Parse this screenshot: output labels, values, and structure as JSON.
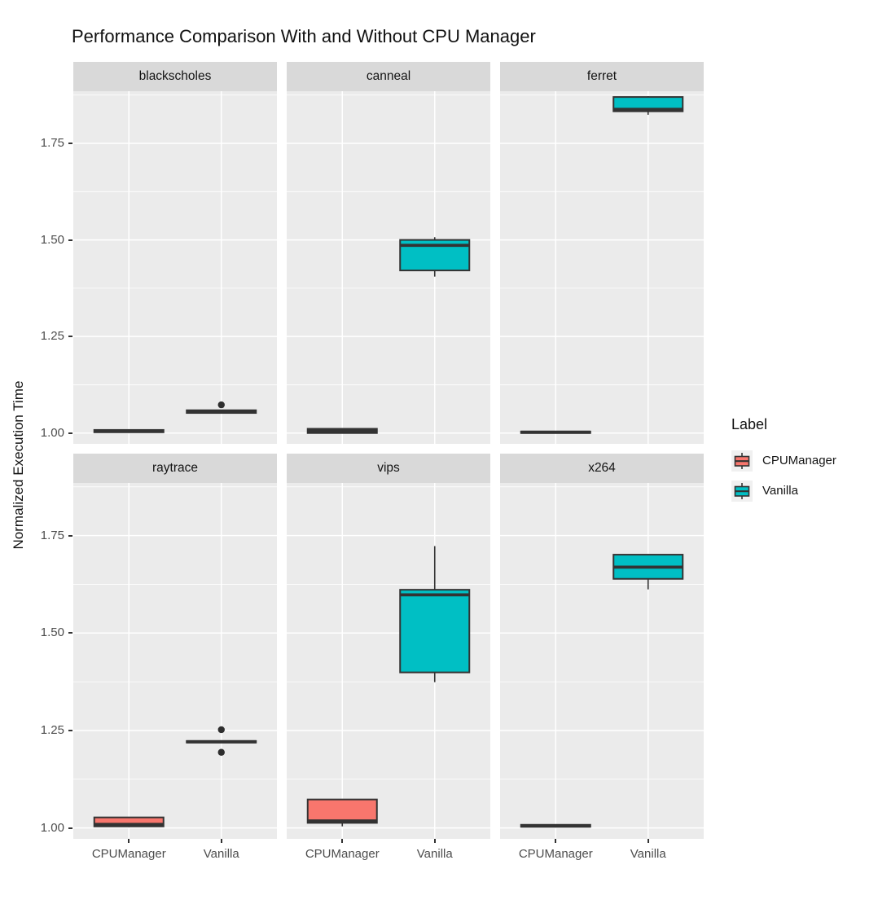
{
  "title": "Performance Comparison With and Without CPU Manager",
  "colors": {
    "panel_bg": "#EBEBEB",
    "strip_bg": "#D9D9D9",
    "grid": "#FFFFFF",
    "box_stroke": "#333333",
    "median": "#333333",
    "outlier": "#2E2E2E",
    "tick_label": "#4D4D4D",
    "legend_key_bg": "#F0F0F0",
    "cpu_manager": "#F8766D",
    "vanilla": "#00BFC4"
  },
  "chart_data": {
    "type": "boxplot",
    "title": "Performance Comparison With and Without CPU Manager",
    "xlabel": "",
    "ylabel": "Normalized Execution Time",
    "categories": [
      "CPUManager",
      "Vanilla"
    ],
    "x_tick_labels": [
      "CPUManager",
      "Vanilla"
    ],
    "y_ticks": [
      1.0,
      1.25,
      1.5,
      1.75
    ],
    "y_tick_labels": [
      "1.00",
      "1.25",
      "1.50",
      "1.75"
    ],
    "y_minor_ticks": [
      1.125,
      1.375,
      1.625,
      1.875
    ],
    "y_domain": [
      0.972,
      1.885
    ],
    "grid": "on",
    "legend": {
      "position": "right",
      "title": "Label",
      "entries": [
        {
          "label": "CPUManager",
          "color": "#F8766D"
        },
        {
          "label": "Vanilla",
          "color": "#00BFC4"
        }
      ]
    },
    "series_colors": {
      "CPUManager": "#F8766D",
      "Vanilla": "#00BFC4"
    },
    "facets": [
      {
        "name": "blackscholes",
        "boxes": [
          {
            "group": "CPUManager",
            "low": 1.002,
            "q1": 1.002,
            "median": 1.005,
            "q3": 1.008,
            "high": 1.008,
            "outliers": []
          },
          {
            "group": "Vanilla",
            "low": 1.052,
            "q1": 1.052,
            "median": 1.056,
            "q3": 1.059,
            "high": 1.059,
            "outliers": [
              1.073
            ]
          }
        ]
      },
      {
        "name": "canneal",
        "boxes": [
          {
            "group": "CPUManager",
            "low": 0.999,
            "q1": 1.0,
            "median": 1.005,
            "q3": 1.011,
            "high": 1.012,
            "outliers": []
          },
          {
            "group": "Vanilla",
            "low": 1.405,
            "q1": 1.421,
            "median": 1.486,
            "q3": 1.5,
            "high": 1.507,
            "outliers": []
          }
        ]
      },
      {
        "name": "ferret",
        "boxes": [
          {
            "group": "CPUManager",
            "low": 0.999,
            "q1": 1.0,
            "median": 1.002,
            "q3": 1.004,
            "high": 1.005,
            "outliers": []
          },
          {
            "group": "Vanilla",
            "low": 1.824,
            "q1": 1.833,
            "median": 1.838,
            "q3": 1.87,
            "high": 1.872,
            "outliers": []
          }
        ]
      },
      {
        "name": "raytrace",
        "boxes": [
          {
            "group": "CPUManager",
            "low": 1.002,
            "q1": 1.004,
            "median": 1.009,
            "q3": 1.027,
            "high": 1.028,
            "outliers": []
          },
          {
            "group": "Vanilla",
            "low": 1.219,
            "q1": 1.219,
            "median": 1.221,
            "q3": 1.223,
            "high": 1.223,
            "outliers": [
              1.252,
              1.194
            ]
          }
        ]
      },
      {
        "name": "vips",
        "boxes": [
          {
            "group": "CPUManager",
            "low": 1.004,
            "q1": 1.013,
            "median": 1.018,
            "q3": 1.073,
            "high": 1.073,
            "outliers": []
          },
          {
            "group": "Vanilla",
            "low": 1.374,
            "q1": 1.399,
            "median": 1.598,
            "q3": 1.611,
            "high": 1.723,
            "outliers": []
          }
        ]
      },
      {
        "name": "x264",
        "boxes": [
          {
            "group": "CPUManager",
            "low": 1.002,
            "q1": 1.003,
            "median": 1.005,
            "q3": 1.008,
            "high": 1.008,
            "outliers": []
          },
          {
            "group": "Vanilla",
            "low": 1.612,
            "q1": 1.639,
            "median": 1.669,
            "q3": 1.701,
            "high": 1.701,
            "outliers": []
          }
        ]
      }
    ]
  }
}
